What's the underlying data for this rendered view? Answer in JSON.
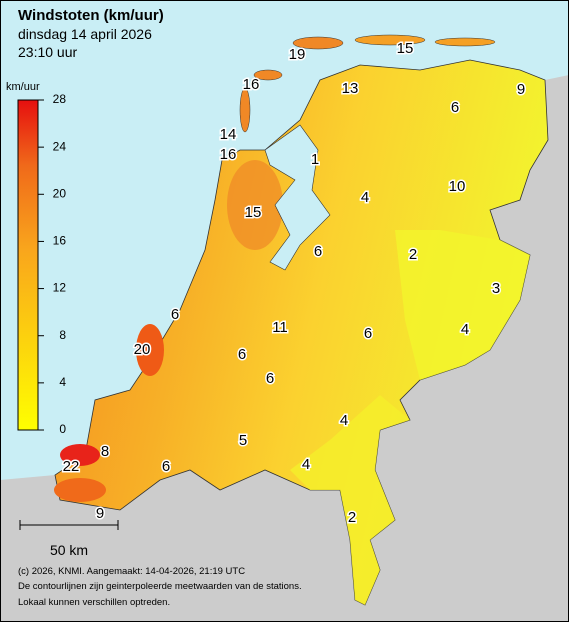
{
  "title": "Windstoten (km/uur)",
  "subtitle": "dinsdag 14 april 2026",
  "time": "23:10 uur",
  "legend": {
    "unit": "km/uur",
    "ticks": [
      0,
      4,
      8,
      12,
      16,
      20,
      24,
      28
    ]
  },
  "stations": [
    19,
    15,
    16,
    13,
    9,
    6,
    14,
    16,
    1,
    4,
    10,
    15,
    6,
    2,
    3,
    4,
    6,
    11,
    6,
    20,
    6,
    6,
    4,
    5,
    8,
    4,
    22,
    6,
    9,
    2
  ],
  "scale": "50 km",
  "footer": [
    "(c) 2026, KNMI. Aangemaakt: 14-04-2026, 21:19 UTC",
    "De contourlijnen zijn geinterpoleerde meetwaarden van de stations.",
    "Lokaal kunnen verschillen optreden."
  ]
}
